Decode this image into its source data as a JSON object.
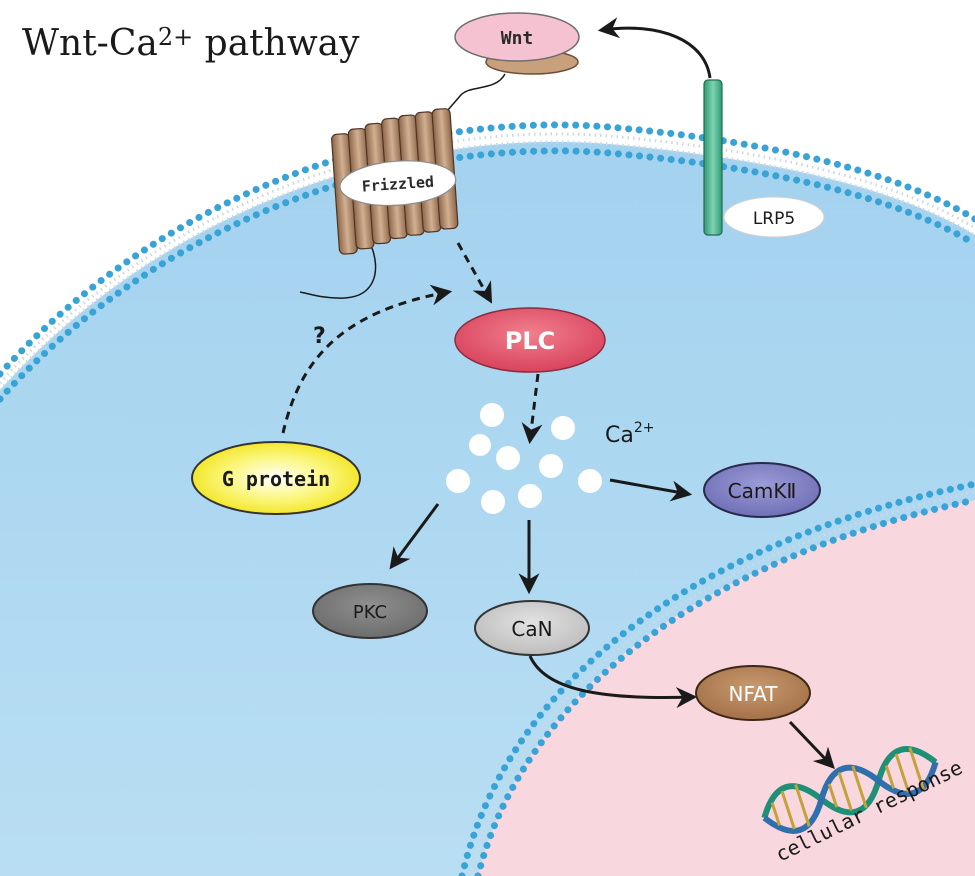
{
  "title": {
    "main": "Wnt-Ca",
    "superscript": "2+",
    "rest": " pathway"
  },
  "labels": {
    "wnt": "Wnt",
    "frizzled": "Frizzled",
    "lrp5": "LRP5",
    "plc": "PLC",
    "question": "?",
    "g_protein": "G protein",
    "calcium_base": "Ca",
    "calcium_sup": "2+",
    "camk": "CamKⅡ",
    "pkc": "PKC",
    "can": "CaN",
    "nfat": "NFAT",
    "cellular_response": "cellular response"
  },
  "colors": {
    "cytoplasm": "#a7d3ee",
    "nucleus": "#f9d9e0",
    "membrane_bead": "#3aa3d6",
    "wnt": "#f5c2d2",
    "plc": "#e0576d",
    "g_protein": "#f4f02a",
    "camk": "#7f7fc4",
    "pkc": "#7f7f7f",
    "can": "#cfcfcf",
    "nfat": "#b9865b",
    "lrp5": "#43b08a",
    "frizzled": "#b58e6f"
  }
}
